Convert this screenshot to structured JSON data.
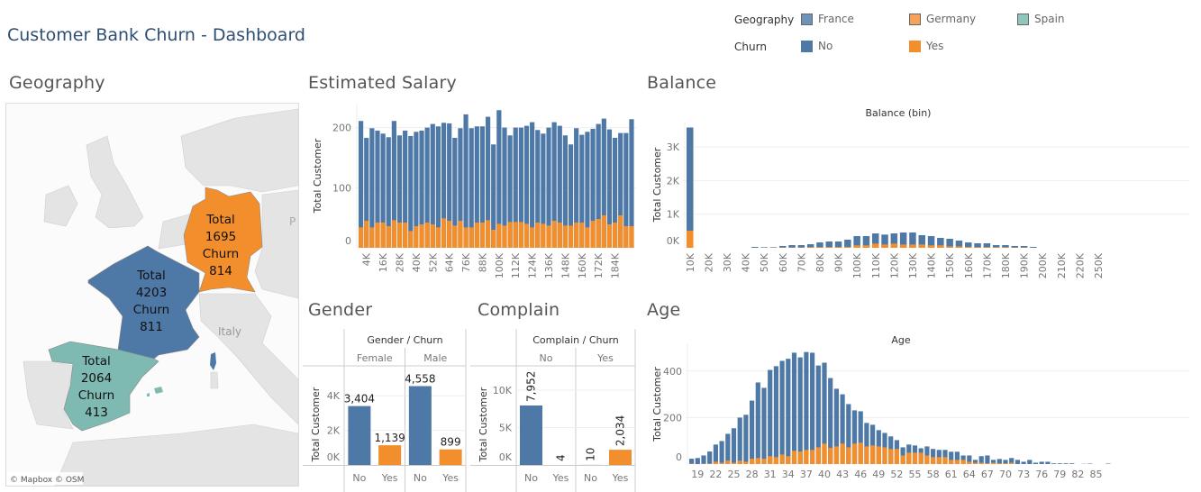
{
  "header": {
    "title": "Customer Bank Churn - Dashboard"
  },
  "legend": {
    "geography_label": "Geography",
    "geography_items": [
      {
        "label": "France",
        "color": "#6f92b8"
      },
      {
        "label": "Germany",
        "color": "#f5a35a"
      },
      {
        "label": "Spain",
        "color": "#8fc5bd"
      }
    ],
    "churn_label": "Churn",
    "churn_items": [
      {
        "label": "No",
        "color": "#4e79a7"
      },
      {
        "label": "Yes",
        "color": "#f28e2b"
      }
    ]
  },
  "sections": {
    "geography": "Geography",
    "salary": "Estimated Salary",
    "balance": "Balance",
    "gender": "Gender",
    "complain": "Complain",
    "age": "Age"
  },
  "map": {
    "countries": [
      {
        "name": "France",
        "total_label": "Total",
        "total": "4203",
        "churn_label": "Churn",
        "churn": "811",
        "color": "#4e79a7"
      },
      {
        "name": "Germany",
        "total_label": "Total",
        "total": "1695",
        "churn_label": "Churn",
        "churn": "814",
        "color": "#f28e2b"
      },
      {
        "name": "Spain",
        "total_label": "Total",
        "total": "2064",
        "churn_label": "Churn",
        "churn": "413",
        "color": "#7ebab1"
      }
    ],
    "place_label": "Italy",
    "edge_label": "P",
    "attribution": "© Mapbox  © OSM"
  },
  "chart_data": [
    {
      "id": "salary",
      "type": "bar",
      "stacked": true,
      "ylabel": "Total Customer",
      "ylim": [
        0,
        230
      ],
      "yticks": [
        "0",
        "100",
        "200"
      ],
      "ytick_values": [
        0,
        100,
        200
      ],
      "x_bin_start_k": 0,
      "x_bin_step_k": 4,
      "xtick_labels": [
        "4K",
        "16K",
        "28K",
        "40K",
        "52K",
        "64K",
        "76K",
        "88K",
        "100K",
        "112K",
        "124K",
        "136K",
        "148K",
        "160K",
        "172K",
        "184K"
      ],
      "totals": [
        211,
        183,
        199,
        195,
        190,
        184,
        211,
        187,
        195,
        186,
        193,
        195,
        200,
        206,
        202,
        208,
        207,
        183,
        199,
        222,
        199,
        202,
        202,
        218,
        172,
        229,
        200,
        187,
        200,
        200,
        203,
        209,
        196,
        190,
        200,
        209,
        203,
        187,
        172,
        199,
        188,
        193,
        198,
        206,
        215,
        197,
        183,
        191,
        191,
        214
      ],
      "series": [
        {
          "name": "Yes",
          "values": [
            34,
            45,
            34,
            42,
            42,
            36,
            46,
            42,
            42,
            28,
            36,
            39,
            42,
            39,
            34,
            49,
            45,
            37,
            45,
            34,
            34,
            42,
            42,
            46,
            30,
            40,
            37,
            43,
            43,
            43,
            40,
            34,
            42,
            40,
            37,
            45,
            42,
            37,
            37,
            42,
            42,
            34,
            45,
            48,
            54,
            39,
            42,
            54,
            36,
            36
          ]
        }
      ]
    },
    {
      "id": "balance",
      "type": "bar",
      "stacked": true,
      "title": "Balance (bin)",
      "ylabel": "Total Customer",
      "yticks": [
        "0K",
        "1K",
        "2K",
        "3K"
      ],
      "ytick_values": [
        0,
        1000,
        2000,
        3000
      ],
      "xtick_labels": [
        "10K",
        "20K",
        "30K",
        "40K",
        "50K",
        "60K",
        "70K",
        "80K",
        "90K",
        "100K",
        "110K",
        "120K",
        "130K",
        "140K",
        "150K",
        "160K",
        "170K",
        "180K",
        "190K",
        "200K",
        "210K",
        "220K",
        "250K"
      ],
      "totals": [
        3580,
        0,
        0,
        0,
        0,
        0,
        0,
        27,
        18,
        18,
        54,
        80,
        80,
        107,
        160,
        188,
        188,
        241,
        348,
        348,
        428,
        393,
        428,
        455,
        455,
        375,
        348,
        295,
        268,
        214,
        160,
        134,
        134,
        80,
        80,
        54,
        54,
        27,
        0,
        0,
        0,
        0,
        0,
        0,
        0,
        0
      ],
      "series": [
        {
          "name": "Yes",
          "values": [
            510,
            0,
            0,
            0,
            0,
            0,
            0,
            3,
            3,
            3,
            10,
            10,
            12,
            20,
            22,
            25,
            25,
            30,
            75,
            75,
            125,
            98,
            125,
            98,
            98,
            98,
            75,
            75,
            45,
            45,
            27,
            20,
            20,
            20,
            20,
            10,
            10,
            3,
            0,
            0,
            0,
            0,
            0,
            0,
            0,
            0
          ]
        }
      ]
    },
    {
      "id": "gender",
      "type": "bar",
      "header": "Gender / Churn",
      "groups": [
        "Female",
        "Male"
      ],
      "categories": [
        "No",
        "Yes"
      ],
      "ylabel": "Total Customer",
      "yticks": [
        "0K",
        "2K",
        "4K"
      ],
      "ytick_values": [
        0,
        2000,
        4000
      ],
      "values": [
        [
          3404,
          1139
        ],
        [
          4558,
          899
        ]
      ],
      "data_labels": [
        [
          "3,404",
          "1,139"
        ],
        [
          "4,558",
          "899"
        ]
      ]
    },
    {
      "id": "complain",
      "type": "bar",
      "header": "Complain / Churn",
      "groups": [
        "No",
        "Yes"
      ],
      "categories": [
        "No",
        "Yes"
      ],
      "ylabel": "Total Customer",
      "yticks": [
        "0K",
        "5K",
        "10K"
      ],
      "ytick_values": [
        0,
        5000,
        10000
      ],
      "values": [
        [
          7952,
          4
        ],
        [
          10,
          2034
        ]
      ],
      "data_labels": [
        [
          "7,952",
          "4"
        ],
        [
          "10",
          "2,034"
        ]
      ]
    },
    {
      "id": "age",
      "type": "bar",
      "stacked": true,
      "title": "Age",
      "ylabel": "Total Customer",
      "yticks": [
        "0",
        "200",
        "400"
      ],
      "ytick_values": [
        0,
        200,
        400
      ],
      "x_start": 18,
      "xtick_labels": [
        "19",
        "22",
        "25",
        "28",
        "31",
        "34",
        "37",
        "40",
        "43",
        "46",
        "49",
        "52",
        "55",
        "58",
        "61",
        "64",
        "67",
        "70",
        "73",
        "76",
        "79",
        "82",
        "85"
      ],
      "totals": [
        23,
        26,
        37,
        54,
        84,
        99,
        130,
        154,
        200,
        212,
        273,
        351,
        328,
        405,
        421,
        444,
        453,
        479,
        459,
        482,
        479,
        424,
        436,
        370,
        324,
        300,
        258,
        231,
        227,
        177,
        169,
        146,
        134,
        119,
        103,
        72,
        84,
        80,
        68,
        76,
        65,
        61,
        61,
        53,
        53,
        37,
        37,
        18,
        34,
        37,
        18,
        22,
        18,
        26,
        18,
        10,
        18,
        6,
        10,
        10,
        3,
        3,
        3,
        3,
        0,
        1,
        2,
        0,
        0,
        2
      ],
      "series": [
        {
          "name": "Yes",
          "values": [
            2,
            0,
            2,
            2,
            10,
            6,
            15,
            6,
            15,
            10,
            23,
            26,
            23,
            34,
            30,
            41,
            34,
            57,
            54,
            61,
            61,
            72,
            88,
            70,
            76,
            88,
            72,
            88,
            92,
            76,
            80,
            76,
            72,
            65,
            65,
            37,
            49,
            49,
            49,
            37,
            30,
            30,
            30,
            18,
            18,
            18,
            10,
            6,
            6,
            3,
            6,
            3,
            3,
            6,
            0,
            0,
            0,
            0,
            0,
            0,
            0,
            0,
            0,
            0,
            0,
            0,
            0,
            0,
            0,
            0
          ]
        }
      ]
    }
  ]
}
